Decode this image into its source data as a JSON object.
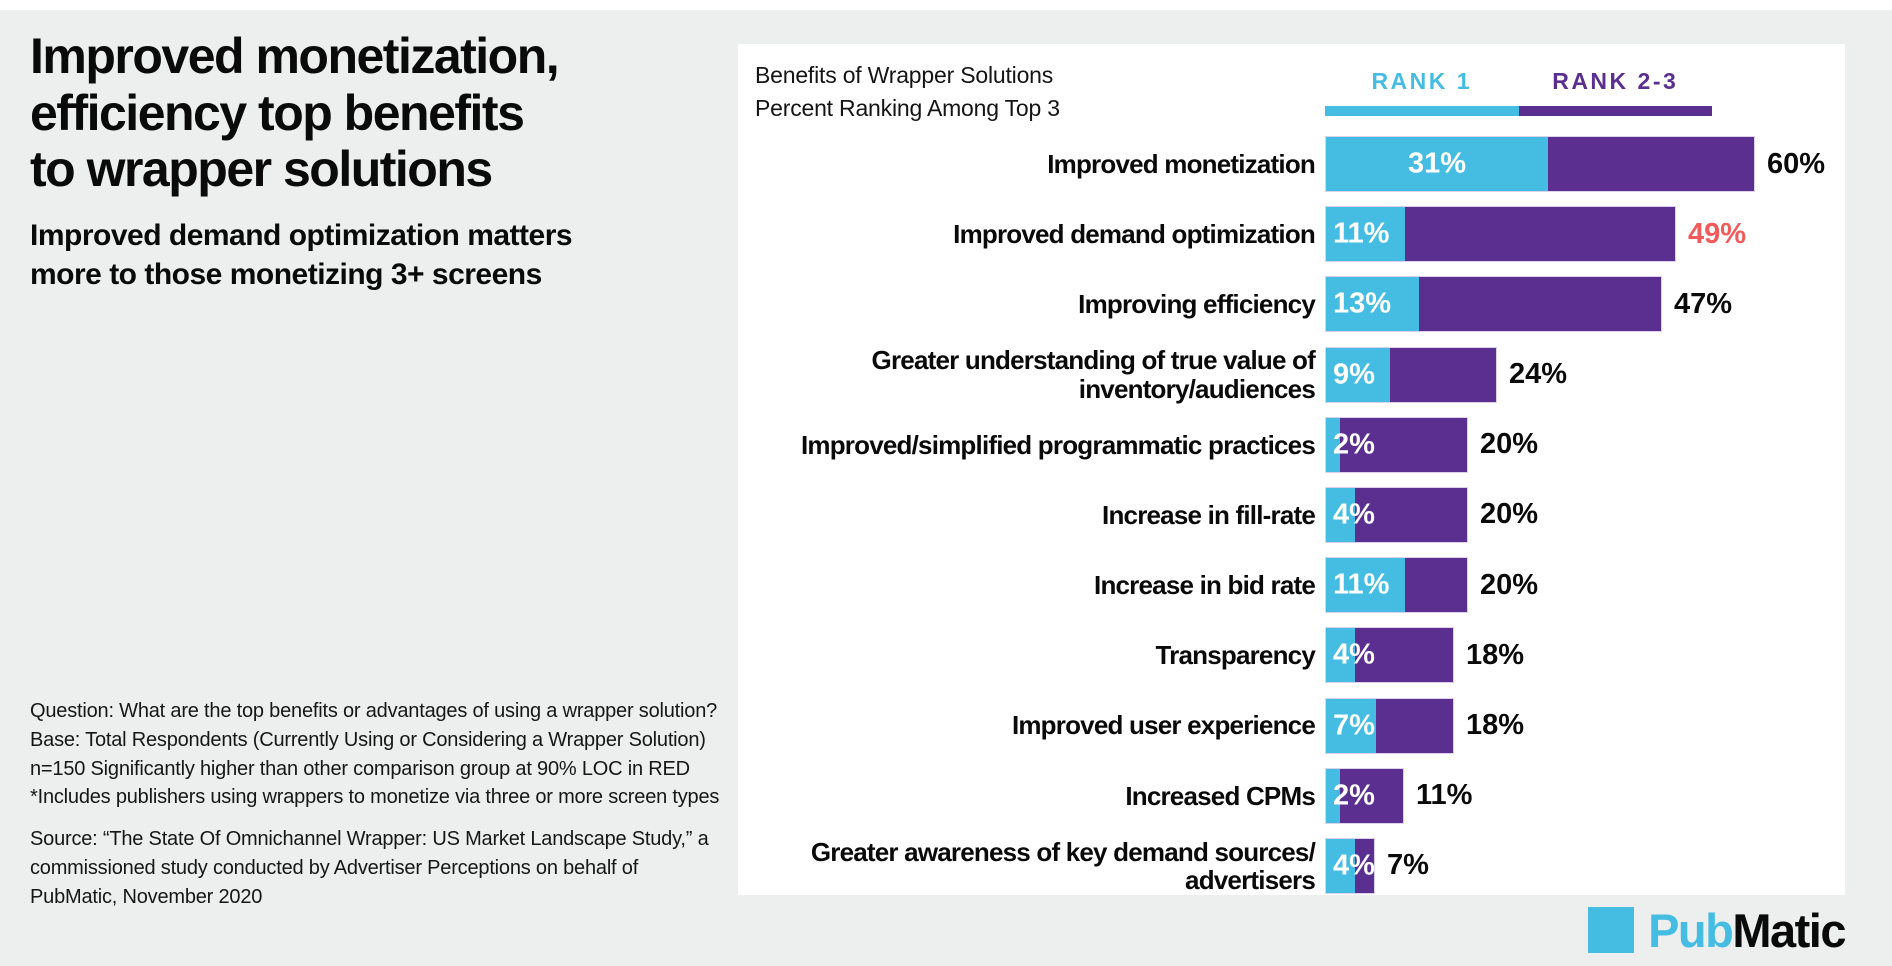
{
  "colors": {
    "background": "#EDEFEE",
    "panel": "#FFFFFF",
    "rank1_cyan": "#45BDE2",
    "rank23_purple": "#5B2F90",
    "highlight_red": "#F15B5B"
  },
  "left": {
    "title_lines": [
      "Improved monetization,",
      "efficiency top benefits",
      "to wrapper solutions"
    ],
    "subtitle_lines": [
      "Improved demand optimization matters",
      "more to those monetizing 3+ screens"
    ],
    "footnote_question": "Question: What are the top benefits or advantages of using a wrapper solution? Base: Total Respondents (Currently Using or Considering a Wrapper Solution) n=150 Significantly higher than other comparison group at 90% LOC in RED *Includes publishers using wrappers to monetize via three or more screen types",
    "footnote_source": "Source: “The State Of Omnichannel Wrapper: US Market Landscape Study,” a commissioned study conducted by Advertiser Perceptions on behalf of PubMatic, November 2020"
  },
  "chart_data": {
    "type": "bar",
    "orientation": "horizontal-stacked",
    "title": "Benefits of Wrapper Solutions",
    "subtitle": "Percent Ranking Among Top 3",
    "unit": "%",
    "xlim": [
      0,
      72
    ],
    "grid": false,
    "legend_position": "top-right",
    "legend": [
      {
        "label": "RANK 1",
        "color": "#45BDE2"
      },
      {
        "label": "RANK 2-3",
        "color": "#5B2F90"
      }
    ],
    "value_labels": "rank1 shown in white inside cyan segment; cumulative total shown in black at bar end",
    "rows": [
      {
        "label": "Improved monetization",
        "rank1_pct": 31,
        "total_pct": 60,
        "total_red": false
      },
      {
        "label": "Improved demand optimization",
        "rank1_pct": 11,
        "total_pct": 49,
        "total_red": true
      },
      {
        "label": "Improving efficiency",
        "rank1_pct": 13,
        "total_pct": 47,
        "total_red": false
      },
      {
        "label": "Greater understanding of true value of\ninventory/audiences",
        "rank1_pct": 9,
        "total_pct": 24,
        "total_red": false
      },
      {
        "label": "Improved/simplified programmatic practices",
        "rank1_pct": 2,
        "total_pct": 20,
        "total_red": false
      },
      {
        "label": "Increase in fill-rate",
        "rank1_pct": 4,
        "total_pct": 20,
        "total_red": false
      },
      {
        "label": "Increase in bid rate",
        "rank1_pct": 11,
        "total_pct": 20,
        "total_red": false
      },
      {
        "label": "Transparency",
        "rank1_pct": 4,
        "total_pct": 18,
        "total_red": false
      },
      {
        "label": "Improved user experience",
        "rank1_pct": 7,
        "total_pct": 18,
        "total_red": false
      },
      {
        "label": "Increased CPMs",
        "rank1_pct": 2,
        "total_pct": 11,
        "total_red": false
      },
      {
        "label": "Greater awareness of key demand sources/\nadvertisers",
        "rank1_pct": 4,
        "total_pct": 7,
        "total_red": false
      }
    ]
  },
  "logo": {
    "pub": "Pub",
    "matic": "Matic"
  }
}
